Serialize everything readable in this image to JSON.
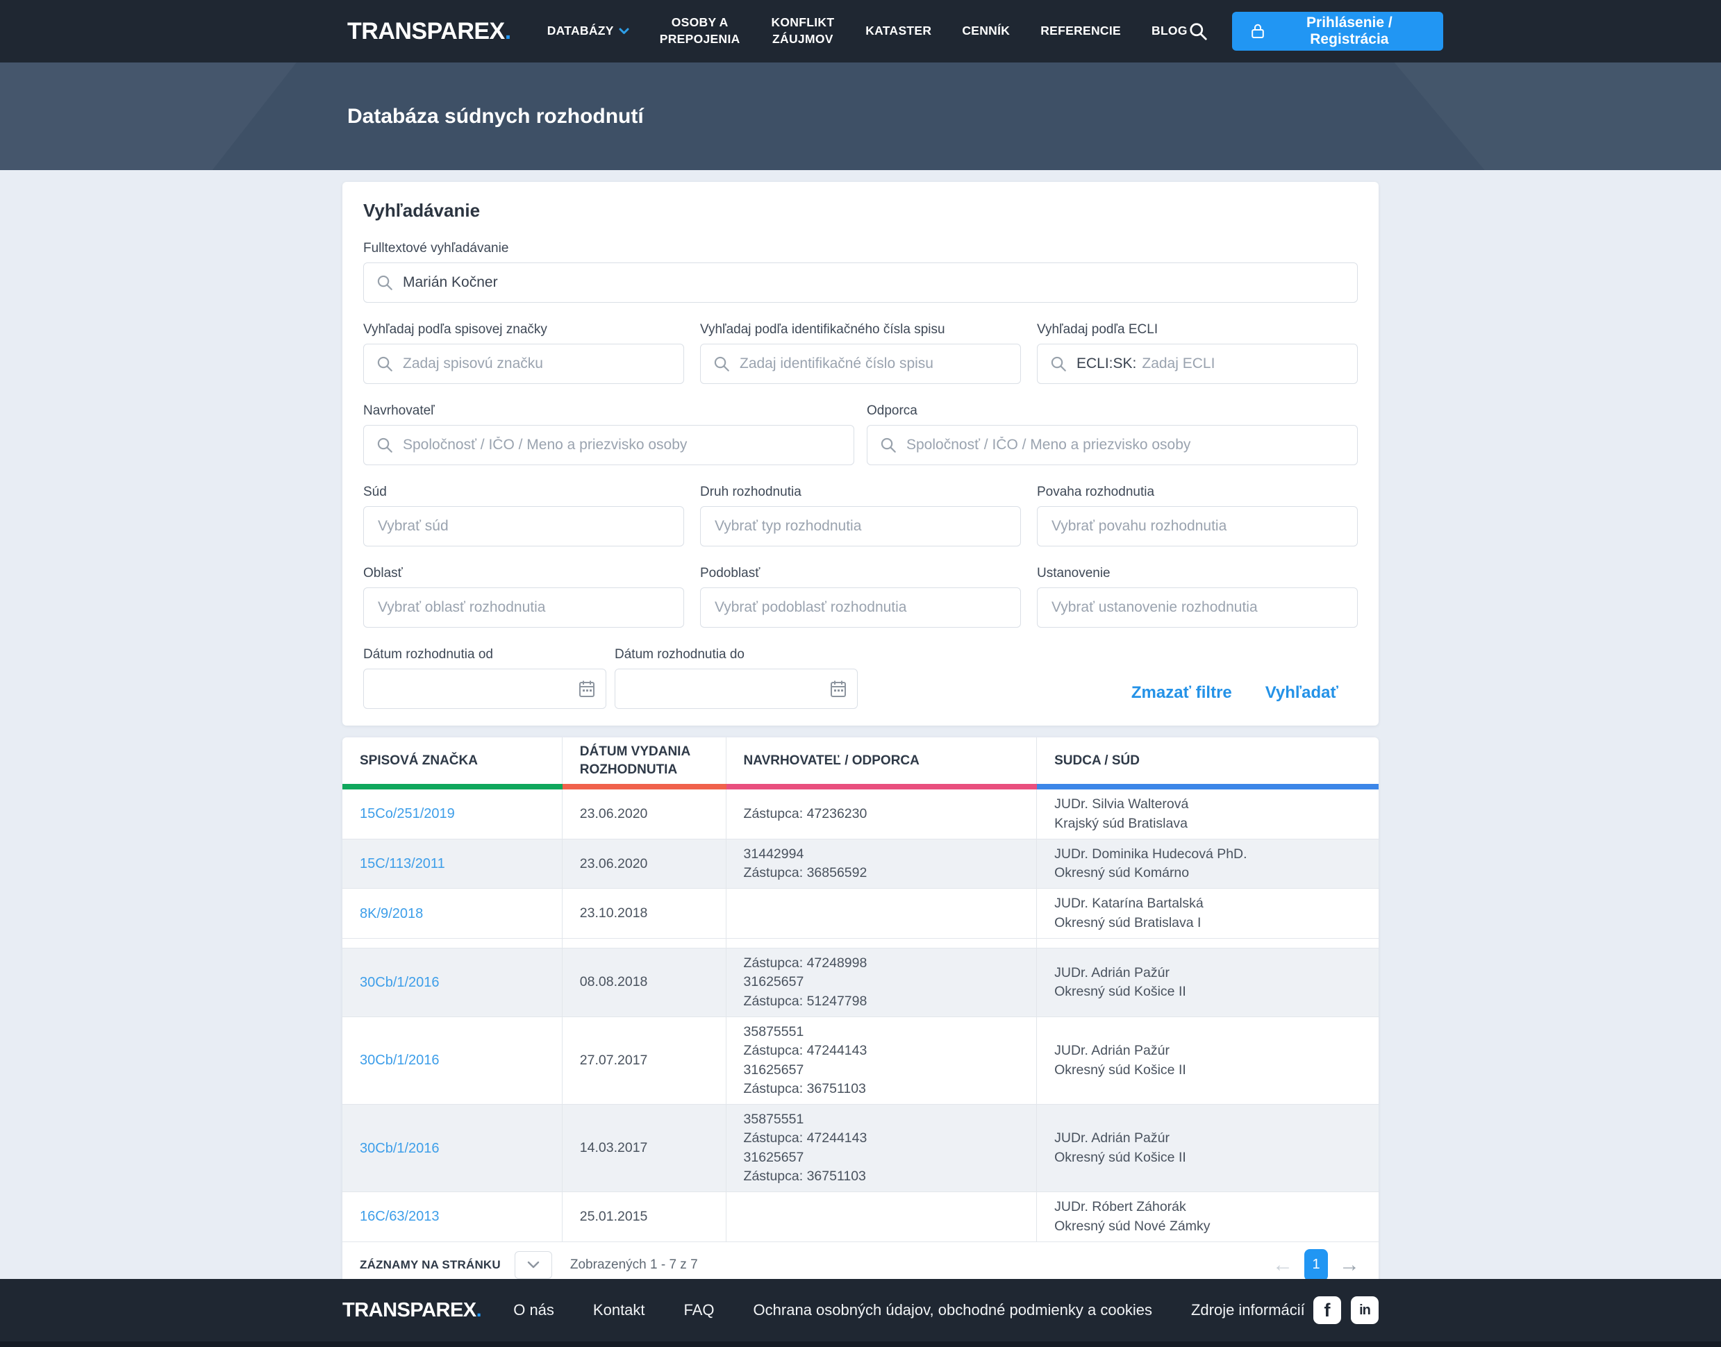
{
  "colors": {
    "navbar_bg": "#1F2732",
    "hero_bg": "#3E5066",
    "page_bg": "#E8EDF4",
    "accent_blue": "#2196F3",
    "link_blue": "#3D9EE9"
  },
  "navbar": {
    "logo_text": "TRANSPAREX",
    "logo_dot": ".",
    "items": [
      {
        "label": "DATABÁZY",
        "chevron": true,
        "wrap": false
      },
      {
        "label": "OSOBY A PREPOJENIA",
        "chevron": false,
        "wrap": true
      },
      {
        "label": "KONFLIKT ZÁUJMOV",
        "chevron": false,
        "wrap": true
      },
      {
        "label": "KATASTER",
        "chevron": false,
        "wrap": false
      },
      {
        "label": "CENNÍK",
        "chevron": false,
        "wrap": false
      },
      {
        "label": "REFERENCIE",
        "chevron": false,
        "wrap": false
      },
      {
        "label": "BLOG",
        "chevron": false,
        "wrap": false
      }
    ],
    "login_button_label": "Prihlásenie / Registrácia"
  },
  "hero": {
    "title": "Databáza súdnych rozhodnutí"
  },
  "search": {
    "title": "Vyhľadávanie",
    "fulltext": {
      "label": "Fulltextové vyhľadávanie",
      "value": "Marián Kočner"
    },
    "spisova": {
      "label": "Vyhľadaj podľa spisovej značky",
      "placeholder": "Zadaj spisovú značku"
    },
    "ident": {
      "label": "Vyhľadaj podľa identifikačného čísla spisu",
      "placeholder": "Zadaj identifikačné číslo spisu"
    },
    "ecli": {
      "label": "Vyhľadaj podľa ECLI",
      "prefix": "ECLI:SK:",
      "placeholder": "Zadaj ECLI"
    },
    "navrhovatel": {
      "label": "Navrhovateľ",
      "placeholder": "Spoločnosť / IČO / Meno a priezvisko osoby"
    },
    "odporca": {
      "label": "Odporca",
      "placeholder": "Spoločnosť / IČO / Meno a priezvisko osoby"
    },
    "sud": {
      "label": "Súd",
      "placeholder": "Vybrať súd"
    },
    "druh": {
      "label": "Druh rozhodnutia",
      "placeholder": "Vybrať typ rozhodnutia"
    },
    "povaha": {
      "label": "Povaha rozhodnutia",
      "placeholder": "Vybrať povahu rozhodnutia"
    },
    "oblast": {
      "label": "Oblasť",
      "placeholder": "Vybrať oblasť rozhodnutia"
    },
    "podoblast": {
      "label": "Podoblasť",
      "placeholder": "Vybrať podoblasť rozhodnutia"
    },
    "ustanovenie": {
      "label": "Ustanovenie",
      "placeholder": "Vybrať ustanovenie rozhodnutia"
    },
    "datum_od": {
      "label": "Dátum rozhodnutia od",
      "value": ""
    },
    "datum_do": {
      "label": "Dátum rozhodnutia do",
      "value": ""
    },
    "clear_label": "Zmazať filtre",
    "search_label": "Vyhľadať"
  },
  "table": {
    "columns": [
      {
        "label": "SPISOVÁ ZNAČKA",
        "accent": "#0FA75C",
        "width": "21.2%"
      },
      {
        "label": "DÁTUM VYDANIA ROZHODNUTIA",
        "accent": "#F0614C",
        "width": "15.8%"
      },
      {
        "label": "NAVRHOVATEĽ / ODPORCA",
        "accent": "#E94F7E",
        "width": "30%"
      },
      {
        "label": "SUDCA / SÚD",
        "accent": "#3C86E8",
        "width": "33%"
      }
    ],
    "rows": [
      {
        "spisova": "15Co/251/2019",
        "datum": "23.06.2020",
        "navrhovatel": [
          "Zástupca: 47236230"
        ],
        "sudca": [
          "JUDr. Silvia Walterová",
          "Krajský súd Bratislava"
        ],
        "zebra": false,
        "thin": false
      },
      {
        "spisova": "15C/113/2011",
        "datum": "23.06.2020",
        "navrhovatel": [
          "31442994",
          "Zástupca: 36856592"
        ],
        "sudca": [
          "JUDr. Dominika Hudecová PhD.",
          "Okresný súd Komárno"
        ],
        "zebra": true,
        "thin": false
      },
      {
        "spisova": "8K/9/2018",
        "datum": "23.10.2018",
        "navrhovatel": [],
        "sudca": [
          "JUDr. Katarína Bartalská",
          "Okresný súd Bratislava I"
        ],
        "zebra": false,
        "thin": false
      },
      {
        "spisova": "",
        "datum": "",
        "navrhovatel": [],
        "sudca": [],
        "zebra": false,
        "thin": true
      },
      {
        "spisova": "30Cb/1/2016",
        "datum": "08.08.2018",
        "navrhovatel": [
          "Zástupca: 47248998",
          "31625657",
          "Zástupca: 51247798"
        ],
        "sudca": [
          "JUDr. Adrián Pažúr",
          "Okresný súd Košice II"
        ],
        "zebra": true,
        "thin": false
      },
      {
        "spisova": "30Cb/1/2016",
        "datum": "27.07.2017",
        "navrhovatel": [
          "35875551",
          "Zástupca: 47244143",
          "31625657",
          "Zástupca: 36751103"
        ],
        "sudca": [
          "JUDr. Adrián Pažúr",
          "Okresný súd Košice II"
        ],
        "zebra": false,
        "thin": false
      },
      {
        "spisova": "30Cb/1/2016",
        "datum": "14.03.2017",
        "navrhovatel": [
          "35875551",
          "Zástupca: 47244143",
          "31625657",
          "Zástupca: 36751103"
        ],
        "sudca": [
          "JUDr. Adrián Pažúr",
          "Okresný súd Košice II"
        ],
        "zebra": true,
        "thin": false
      },
      {
        "spisova": "16C/63/2013",
        "datum": "25.01.2015",
        "navrhovatel": [],
        "sudca": [
          "JUDr. Róbert Záhorák",
          "Okresný súd Nové Zámky"
        ],
        "zebra": false,
        "thin": false
      }
    ]
  },
  "pagination": {
    "per_page_label": "ZÁZNAMY NA STRÁNKU",
    "shown_text": "Zobrazených 1 - 7 z 7",
    "current_page": "1",
    "prev_arrow": "←",
    "next_arrow": "→"
  },
  "footer": {
    "logo_text": "TRANSPAREX",
    "logo_dot": ".",
    "links": [
      "O nás",
      "Kontakt",
      "FAQ",
      "Ochrana osobných údajov, obchodné podmienky a cookies",
      "Zdroje informácií"
    ],
    "social_fb": "f",
    "social_li": "in"
  }
}
